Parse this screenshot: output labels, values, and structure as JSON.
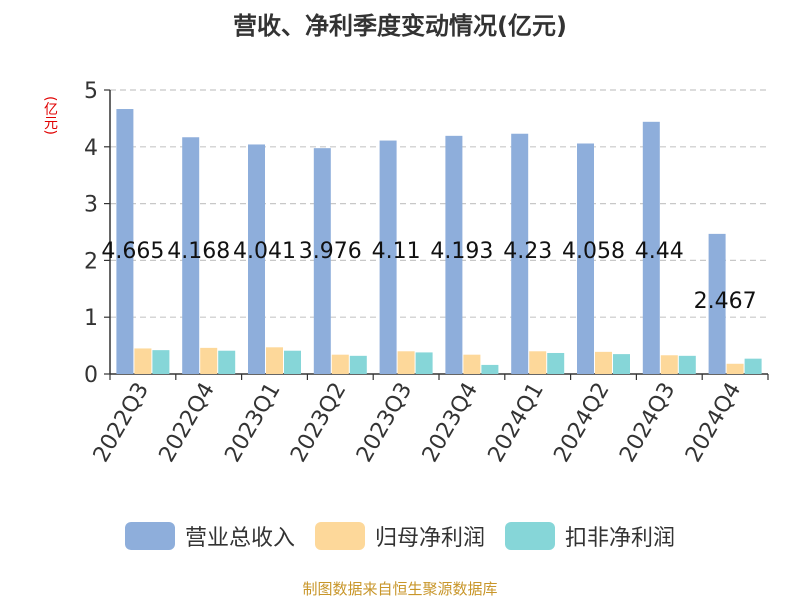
{
  "chart_data": {
    "type": "bar",
    "title": "营收、净利季度变动情况(亿元)",
    "unit_label": "(亿元)",
    "categories": [
      "2022Q3",
      "2022Q4",
      "2023Q1",
      "2023Q2",
      "2023Q3",
      "2023Q4",
      "2024Q1",
      "2024Q2",
      "2024Q3",
      "2024Q4"
    ],
    "series": [
      {
        "name": "营业总收入",
        "color": "#8eaedb",
        "values": [
          4.665,
          4.168,
          4.041,
          3.976,
          4.11,
          4.193,
          4.23,
          4.058,
          4.44,
          2.467
        ]
      },
      {
        "name": "归母净利润",
        "color": "#fdd89a",
        "values": [
          0.45,
          0.46,
          0.47,
          0.34,
          0.4,
          0.34,
          0.4,
          0.39,
          0.33,
          0.18
        ]
      },
      {
        "name": "扣非净利润",
        "color": "#86d6d8",
        "values": [
          0.42,
          0.41,
          0.41,
          0.32,
          0.38,
          0.16,
          0.37,
          0.35,
          0.32,
          0.27
        ]
      }
    ],
    "data_labels": [
      "4.665",
      "4.168",
      "4.041",
      "3.976",
      "4.11",
      "4.193",
      "4.23",
      "4.058",
      "4.44",
      "2.467"
    ],
    "y_ticks": [
      "0",
      "1",
      "2",
      "3",
      "4",
      "5"
    ],
    "ylim": [
      0,
      5
    ],
    "grid": true,
    "legend": "bottom"
  },
  "footer": "制图数据来自恒生聚源数据库"
}
